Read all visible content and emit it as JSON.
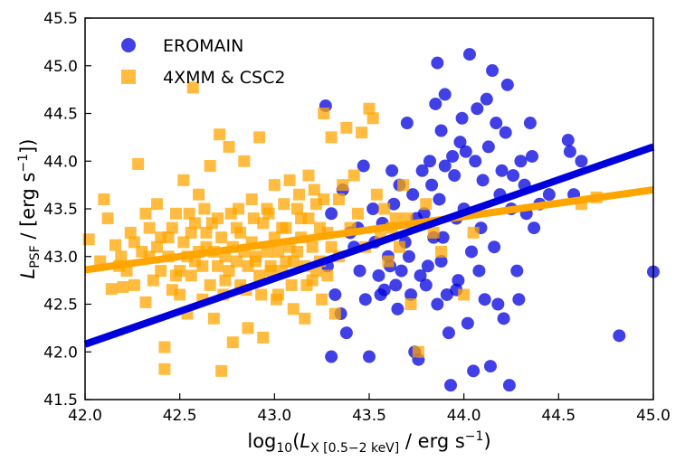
{
  "chart_data": {
    "type": "scatter",
    "xlabel": {
      "pre": "log",
      "sub10": "10",
      "open": "(",
      "L": "L",
      "lsub": "X [0.5−2 keV]",
      "slash": " / erg s",
      "sup": "−1",
      "close": ")"
    },
    "ylabel": {
      "L": "L",
      "lsub": "PSF",
      "slash": " / [erg s",
      "sup": "−1",
      "close": "])"
    },
    "xlim": [
      42.0,
      45.0
    ],
    "ylim": [
      41.5,
      45.5
    ],
    "xticks": [
      "42.0",
      "42.5",
      "43.0",
      "43.5",
      "44.0",
      "44.5",
      "45.0"
    ],
    "yticks": [
      "41.5",
      "42.0",
      "42.5",
      "43.0",
      "43.5",
      "44.0",
      "44.5",
      "45.0",
      "45.5"
    ],
    "grid": false,
    "legend_position": "top-left",
    "colors": {
      "eromain": "#0000dd",
      "xmm": "#ffa500"
    },
    "series": [
      {
        "name": "EROMAIN",
        "marker": "circle",
        "color": "#0000dd",
        "fit": [
          [
            42.0,
            42.08
          ],
          [
            45.0,
            44.15
          ]
        ],
        "points": [
          [
            43.27,
            44.58
          ],
          [
            43.36,
            43.7
          ],
          [
            43.3,
            43.45
          ],
          [
            43.28,
            42.9
          ],
          [
            43.32,
            42.6
          ],
          [
            43.3,
            41.95
          ],
          [
            43.38,
            42.2
          ],
          [
            43.45,
            42.85
          ],
          [
            43.4,
            43.25
          ],
          [
            43.35,
            42.4
          ],
          [
            43.42,
            43.1
          ],
          [
            43.48,
            42.55
          ],
          [
            43.5,
            41.95
          ],
          [
            43.55,
            42.8
          ],
          [
            43.52,
            43.5
          ],
          [
            43.58,
            42.65
          ],
          [
            43.6,
            43.0
          ],
          [
            43.62,
            43.9
          ],
          [
            43.65,
            42.45
          ],
          [
            43.66,
            43.75
          ],
          [
            43.7,
            44.4
          ],
          [
            43.72,
            42.6
          ],
          [
            43.75,
            43.4
          ],
          [
            43.74,
            42.0
          ],
          [
            43.76,
            41.92
          ],
          [
            43.78,
            43.9
          ],
          [
            43.8,
            42.7
          ],
          [
            43.82,
            44.0
          ],
          [
            43.84,
            43.2
          ],
          [
            43.85,
            44.6
          ],
          [
            43.87,
            43.6
          ],
          [
            43.88,
            42.95
          ],
          [
            43.9,
            44.7
          ],
          [
            43.92,
            42.2
          ],
          [
            43.93,
            41.65
          ],
          [
            43.95,
            43.85
          ],
          [
            43.96,
            42.65
          ],
          [
            43.98,
            44.2
          ],
          [
            44.0,
            43.5
          ],
          [
            44.02,
            42.3
          ],
          [
            44.03,
            45.12
          ],
          [
            44.05,
            41.8
          ],
          [
            44.06,
            44.0
          ],
          [
            44.08,
            42.85
          ],
          [
            44.1,
            43.8
          ],
          [
            44.12,
            44.65
          ],
          [
            44.14,
            41.85
          ],
          [
            44.15,
            44.95
          ],
          [
            44.16,
            43.1
          ],
          [
            44.18,
            42.5
          ],
          [
            44.2,
            43.9
          ],
          [
            44.22,
            44.3
          ],
          [
            44.24,
            41.65
          ],
          [
            44.25,
            43.5
          ],
          [
            44.28,
            42.85
          ],
          [
            44.3,
            44.0
          ],
          [
            44.32,
            43.75
          ],
          [
            44.35,
            44.4
          ],
          [
            44.37,
            43.3
          ],
          [
            44.4,
            43.55
          ],
          [
            44.45,
            43.65
          ],
          [
            44.55,
            44.22
          ],
          [
            44.56,
            44.1
          ],
          [
            44.58,
            43.65
          ],
          [
            44.62,
            44.0
          ],
          [
            44.82,
            42.17
          ],
          [
            45.0,
            42.84
          ],
          [
            43.86,
            45.03
          ],
          [
            43.88,
            44.32
          ],
          [
            43.9,
            43.95
          ],
          [
            43.94,
            44.05
          ],
          [
            43.96,
            43.4
          ],
          [
            43.99,
            44.45
          ],
          [
            44.01,
            44.1
          ],
          [
            44.04,
            43.05
          ],
          [
            44.07,
            44.55
          ],
          [
            44.09,
            43.3
          ],
          [
            44.11,
            42.55
          ],
          [
            44.13,
            44.15
          ],
          [
            44.17,
            44.4
          ],
          [
            44.19,
            43.65
          ],
          [
            44.21,
            42.35
          ],
          [
            44.23,
            44.8
          ],
          [
            44.26,
            43.85
          ],
          [
            44.29,
            42.55
          ],
          [
            44.33,
            43.45
          ],
          [
            44.36,
            44.05
          ],
          [
            43.44,
            43.3
          ],
          [
            43.47,
            43.95
          ],
          [
            43.53,
            43.15
          ],
          [
            43.57,
            43.35
          ],
          [
            43.61,
            42.9
          ],
          [
            43.63,
            43.55
          ],
          [
            43.67,
            42.85
          ],
          [
            43.69,
            43.15
          ],
          [
            43.71,
            43.0
          ],
          [
            43.73,
            43.65
          ],
          [
            43.77,
            42.8
          ],
          [
            43.79,
            43.45
          ],
          [
            43.81,
            42.9
          ],
          [
            43.83,
            43.75
          ],
          [
            43.86,
            42.5
          ],
          [
            43.89,
            43.2
          ],
          [
            43.91,
            42.6
          ],
          [
            43.97,
            42.75
          ],
          [
            43.56,
            42.6
          ],
          [
            43.64,
            42.7
          ]
        ]
      },
      {
        "name": "4XMM & CSC2",
        "marker": "square",
        "color": "#ffa500",
        "fit": [
          [
            42.0,
            42.86
          ],
          [
            45.0,
            43.7
          ]
        ],
        "points": [
          [
            42.02,
            43.18
          ],
          [
            42.08,
            42.95
          ],
          [
            42.12,
            43.4
          ],
          [
            42.14,
            42.66
          ],
          [
            42.16,
            43.12
          ],
          [
            42.19,
            43.0
          ],
          [
            42.2,
            42.68
          ],
          [
            42.22,
            42.85
          ],
          [
            42.24,
            43.25
          ],
          [
            42.26,
            42.7
          ],
          [
            42.28,
            43.97
          ],
          [
            42.3,
            43.05
          ],
          [
            42.32,
            42.52
          ],
          [
            42.34,
            43.3
          ],
          [
            42.36,
            42.75
          ],
          [
            42.38,
            43.55
          ],
          [
            42.4,
            42.85
          ],
          [
            42.42,
            42.05
          ],
          [
            42.42,
            41.82
          ],
          [
            42.44,
            43.2
          ],
          [
            42.46,
            42.65
          ],
          [
            42.48,
            43.45
          ],
          [
            42.5,
            42.85
          ],
          [
            42.52,
            43.8
          ],
          [
            42.54,
            42.4
          ],
          [
            42.56,
            43.25
          ],
          [
            42.57,
            44.77
          ],
          [
            42.58,
            42.95
          ],
          [
            42.6,
            43.65
          ],
          [
            42.62,
            42.55
          ],
          [
            42.64,
            43.1
          ],
          [
            42.66,
            43.95
          ],
          [
            42.68,
            42.35
          ],
          [
            42.7,
            43.4
          ],
          [
            42.71,
            44.28
          ],
          [
            42.72,
            41.8
          ],
          [
            42.74,
            42.75
          ],
          [
            42.76,
            44.15
          ],
          [
            42.78,
            42.1
          ],
          [
            42.8,
            43.3
          ],
          [
            42.82,
            42.7
          ],
          [
            42.84,
            44.0
          ],
          [
            42.86,
            42.25
          ],
          [
            42.88,
            43.6
          ],
          [
            42.9,
            42.95
          ],
          [
            42.92,
            44.25
          ],
          [
            42.94,
            42.15
          ],
          [
            42.96,
            43.5
          ],
          [
            42.98,
            42.85
          ],
          [
            43.0,
            43.75
          ],
          [
            43.02,
            42.6
          ],
          [
            43.04,
            43.3
          ],
          [
            43.06,
            42.95
          ],
          [
            43.08,
            43.8
          ],
          [
            43.1,
            42.45
          ],
          [
            43.12,
            43.05
          ],
          [
            43.14,
            43.4
          ],
          [
            43.16,
            42.35
          ],
          [
            43.18,
            43.85
          ],
          [
            43.2,
            42.75
          ],
          [
            43.22,
            43.55
          ],
          [
            43.24,
            42.95
          ],
          [
            43.26,
            44.5
          ],
          [
            43.28,
            43.25
          ],
          [
            43.3,
            44.25
          ],
          [
            43.34,
            43.6
          ],
          [
            43.38,
            44.35
          ],
          [
            43.42,
            43.85
          ],
          [
            43.46,
            44.3
          ],
          [
            43.5,
            44.55
          ],
          [
            43.52,
            44.45
          ],
          [
            43.56,
            43.2
          ],
          [
            43.6,
            42.95
          ],
          [
            43.64,
            43.4
          ],
          [
            43.68,
            43.75
          ],
          [
            43.72,
            42.5
          ],
          [
            43.76,
            42.0
          ],
          [
            43.8,
            43.55
          ],
          [
            43.84,
            43.25
          ],
          [
            43.88,
            43.05
          ],
          [
            44.0,
            42.6
          ],
          [
            44.05,
            43.25
          ],
          [
            44.62,
            43.55
          ],
          [
            44.7,
            43.62
          ],
          [
            42.1,
            43.6
          ],
          [
            42.18,
            42.9
          ],
          [
            42.26,
            43.15
          ],
          [
            42.34,
            43.0
          ],
          [
            42.4,
            43.2
          ],
          [
            42.44,
            43.0
          ],
          [
            42.48,
            42.8
          ],
          [
            42.52,
            43.15
          ],
          [
            42.54,
            43.0
          ],
          [
            42.56,
            42.8
          ],
          [
            42.58,
            43.35
          ],
          [
            42.6,
            43.05
          ],
          [
            42.62,
            42.9
          ],
          [
            42.64,
            43.25
          ],
          [
            42.66,
            42.7
          ],
          [
            42.68,
            43.05
          ],
          [
            42.7,
            42.9
          ],
          [
            42.72,
            43.2
          ],
          [
            42.74,
            43.0
          ],
          [
            42.76,
            42.85
          ],
          [
            42.78,
            43.1
          ],
          [
            42.8,
            42.95
          ],
          [
            42.82,
            43.25
          ],
          [
            42.84,
            43.05
          ],
          [
            42.86,
            42.9
          ],
          [
            42.88,
            43.15
          ],
          [
            42.9,
            43.0
          ],
          [
            42.92,
            42.8
          ],
          [
            42.94,
            43.35
          ],
          [
            42.96,
            43.05
          ],
          [
            42.98,
            42.9
          ],
          [
            43.0,
            43.2
          ],
          [
            43.02,
            43.05
          ],
          [
            43.04,
            42.85
          ],
          [
            43.06,
            43.3
          ],
          [
            43.08,
            43.1
          ],
          [
            43.1,
            42.95
          ],
          [
            43.12,
            43.5
          ],
          [
            43.14,
            43.2
          ],
          [
            43.16,
            42.9
          ],
          [
            43.18,
            43.4
          ],
          [
            43.2,
            43.1
          ],
          [
            43.22,
            42.85
          ],
          [
            43.24,
            43.3
          ],
          [
            43.26,
            43.6
          ],
          [
            43.28,
            42.8
          ],
          [
            43.3,
            43.1
          ],
          [
            43.32,
            42.4
          ],
          [
            43.34,
            43.0
          ],
          [
            43.36,
            43.75
          ],
          [
            43.4,
            43.3
          ],
          [
            43.44,
            43.45
          ],
          [
            43.48,
            43.1
          ],
          [
            43.54,
            43.65
          ],
          [
            43.58,
            43.5
          ],
          [
            43.62,
            43.3
          ],
          [
            43.66,
            43.1
          ],
          [
            43.7,
            43.4
          ],
          [
            42.32,
            43.45
          ],
          [
            42.38,
            43.1
          ],
          [
            42.46,
            43.3
          ],
          [
            42.5,
            42.6
          ],
          [
            42.55,
            43.45
          ],
          [
            42.63,
            43.5
          ],
          [
            42.67,
            43.35
          ],
          [
            42.73,
            42.6
          ],
          [
            42.77,
            43.45
          ],
          [
            42.81,
            43.5
          ],
          [
            42.85,
            42.65
          ],
          [
            42.89,
            43.4
          ],
          [
            42.93,
            42.6
          ],
          [
            42.97,
            43.45
          ],
          [
            43.01,
            42.55
          ],
          [
            43.05,
            43.55
          ],
          [
            43.09,
            42.7
          ],
          [
            43.13,
            43.65
          ],
          [
            43.17,
            42.7
          ],
          [
            43.21,
            43.7
          ],
          [
            43.25,
            42.55
          ]
        ]
      }
    ]
  }
}
